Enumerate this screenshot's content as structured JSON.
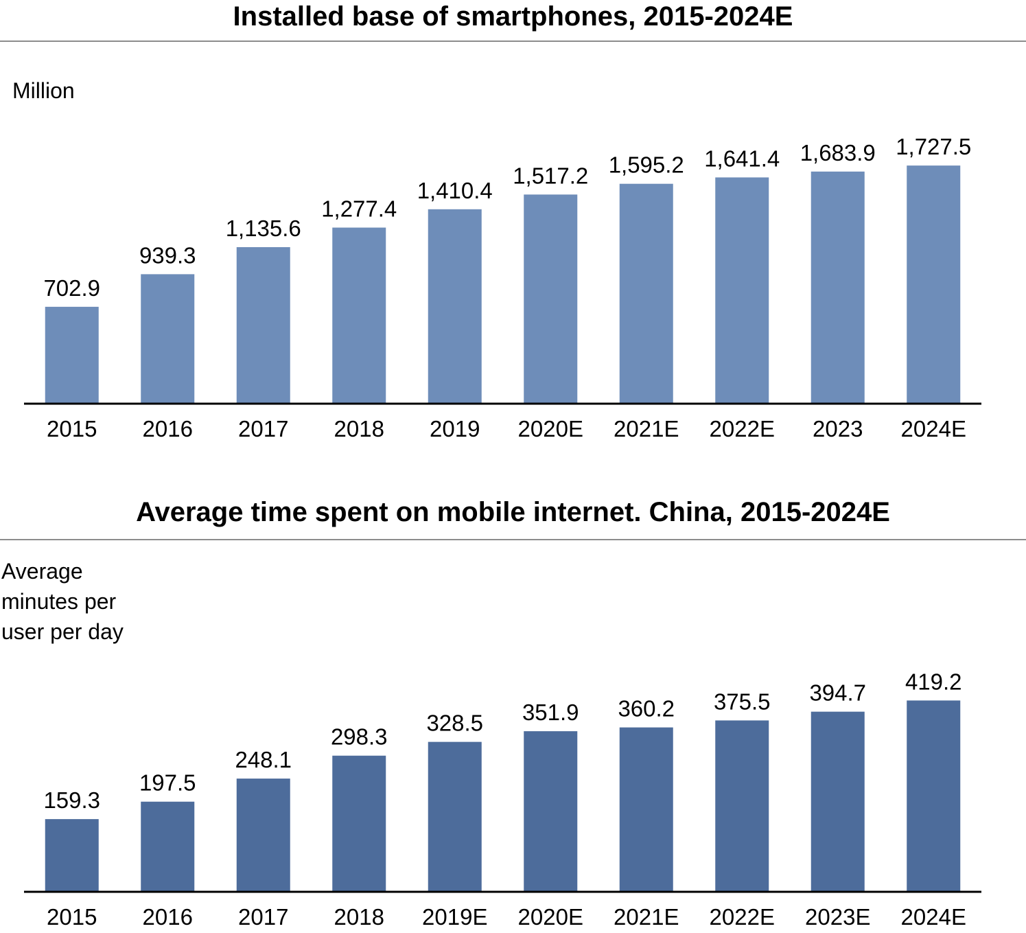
{
  "chart_data": [
    {
      "type": "bar",
      "title": "Installed base of smartphones, 2015-2024E",
      "ylabel": "Million",
      "categories": [
        "2015",
        "2016",
        "2017",
        "2018",
        "2019",
        "2020E",
        "2021E",
        "2022E",
        "2023",
        "2024E"
      ],
      "values": [
        702.9,
        939.3,
        1135.6,
        1277.4,
        1410.4,
        1517.2,
        1595.2,
        1641.4,
        1683.9,
        1727.5
      ],
      "data_labels": [
        "702.9",
        "939.3",
        "1,135.6",
        "1,277.4",
        "1,410.4",
        "1,517.2",
        "1,595.2",
        "1,641.4",
        "1,683.9",
        "1,727.5"
      ],
      "ylim": [
        0,
        1900
      ],
      "grid": false,
      "bar_color": "#6e8db9"
    },
    {
      "type": "bar",
      "title": "Average time spent on mobile internet. China, 2015-2024E",
      "ylabel": "Average\nminutes per\nuser per day",
      "categories": [
        "2015",
        "2016",
        "2017",
        "2018",
        "2019E",
        "2020E",
        "2021E",
        "2022E",
        "2023E",
        "2024E"
      ],
      "values": [
        159.3,
        197.5,
        248.1,
        298.3,
        328.5,
        351.9,
        360.2,
        375.5,
        394.7,
        419.2
      ],
      "data_labels": [
        "159.3",
        "197.5",
        "248.1",
        "298.3",
        "328.5",
        "351.9",
        "360.2",
        "375.5",
        "394.7",
        "419.2"
      ],
      "ylim": [
        0,
        515
      ],
      "grid": false,
      "bar_color": "#4d6c9b"
    }
  ]
}
